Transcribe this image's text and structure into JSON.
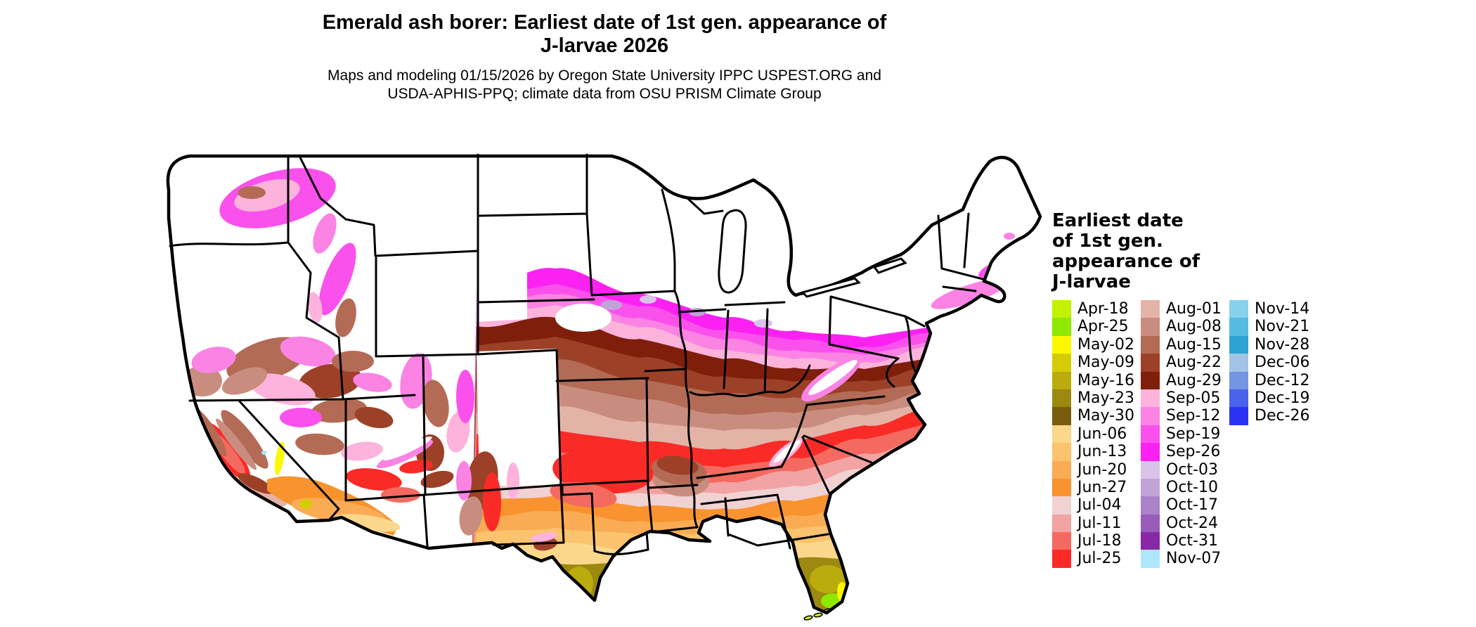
{
  "header": {
    "title_line1": "Emerald ash borer: Earliest date of 1st gen. appearance of",
    "title_line2": "J-larvae 2026",
    "subtitle_line1": "Maps and modeling 01/15/2026 by Oregon State University IPPC USPEST.ORG and",
    "subtitle_line2": "USDA-APHIS-PPQ; climate data from OSU PRISM Climate Group"
  },
  "legend": {
    "title": "Earliest date\nof 1st gen.\nappearance of\nJ-larvae",
    "columns": [
      [
        {
          "label": "Apr-18",
          "color": "#C2F202"
        },
        {
          "label": "Apr-25",
          "color": "#8FE800"
        },
        {
          "label": "May-02",
          "color": "#FCF800"
        },
        {
          "label": "May-09",
          "color": "#D5CC06"
        },
        {
          "label": "May-16",
          "color": "#B9AC0C"
        },
        {
          "label": "May-23",
          "color": "#9C8910"
        },
        {
          "label": "May-30",
          "color": "#795D0E"
        },
        {
          "label": "Jun-06",
          "color": "#FBD78C"
        },
        {
          "label": "Jun-13",
          "color": "#FBC36D"
        },
        {
          "label": "Jun-20",
          "color": "#FAAC55"
        },
        {
          "label": "Jun-27",
          "color": "#F9932F"
        },
        {
          "label": "Jul-04",
          "color": "#F1D2D3"
        },
        {
          "label": "Jul-11",
          "color": "#F2A3A3"
        },
        {
          "label": "Jul-18",
          "color": "#F56A60"
        },
        {
          "label": "Jul-25",
          "color": "#FA2B27"
        }
      ],
      [
        {
          "label": "Aug-01",
          "color": "#E4B3A8"
        },
        {
          "label": "Aug-08",
          "color": "#C98D7F"
        },
        {
          "label": "Aug-15",
          "color": "#B36B56"
        },
        {
          "label": "Aug-22",
          "color": "#9C4128"
        },
        {
          "label": "Aug-29",
          "color": "#7F1F0B"
        },
        {
          "label": "Sep-05",
          "color": "#FDB3DC"
        },
        {
          "label": "Sep-12",
          "color": "#FB83E4"
        },
        {
          "label": "Sep-19",
          "color": "#FB51EC"
        },
        {
          "label": "Sep-26",
          "color": "#FB21F3"
        },
        {
          "label": "Oct-03",
          "color": "#D9C3E8"
        },
        {
          "label": "Oct-10",
          "color": "#C2A3D8"
        },
        {
          "label": "Oct-17",
          "color": "#AC83C9"
        },
        {
          "label": "Oct-24",
          "color": "#9A5BB9"
        },
        {
          "label": "Oct-31",
          "color": "#8928A7"
        },
        {
          "label": "Nov-07",
          "color": "#ADE7F9"
        }
      ],
      [
        {
          "label": "Nov-14",
          "color": "#87D1EC"
        },
        {
          "label": "Nov-21",
          "color": "#55BBE0"
        },
        {
          "label": "Nov-28",
          "color": "#2BA4D4"
        },
        {
          "label": "Dec-06",
          "color": "#A3C3E4"
        },
        {
          "label": "Dec-12",
          "color": "#7495E2"
        },
        {
          "label": "Dec-19",
          "color": "#4A62EC"
        },
        {
          "label": "Dec-26",
          "color": "#2A33F2"
        }
      ]
    ]
  },
  "map": {
    "no_data_color": "#FFFFFF",
    "border_color": "#000000"
  }
}
